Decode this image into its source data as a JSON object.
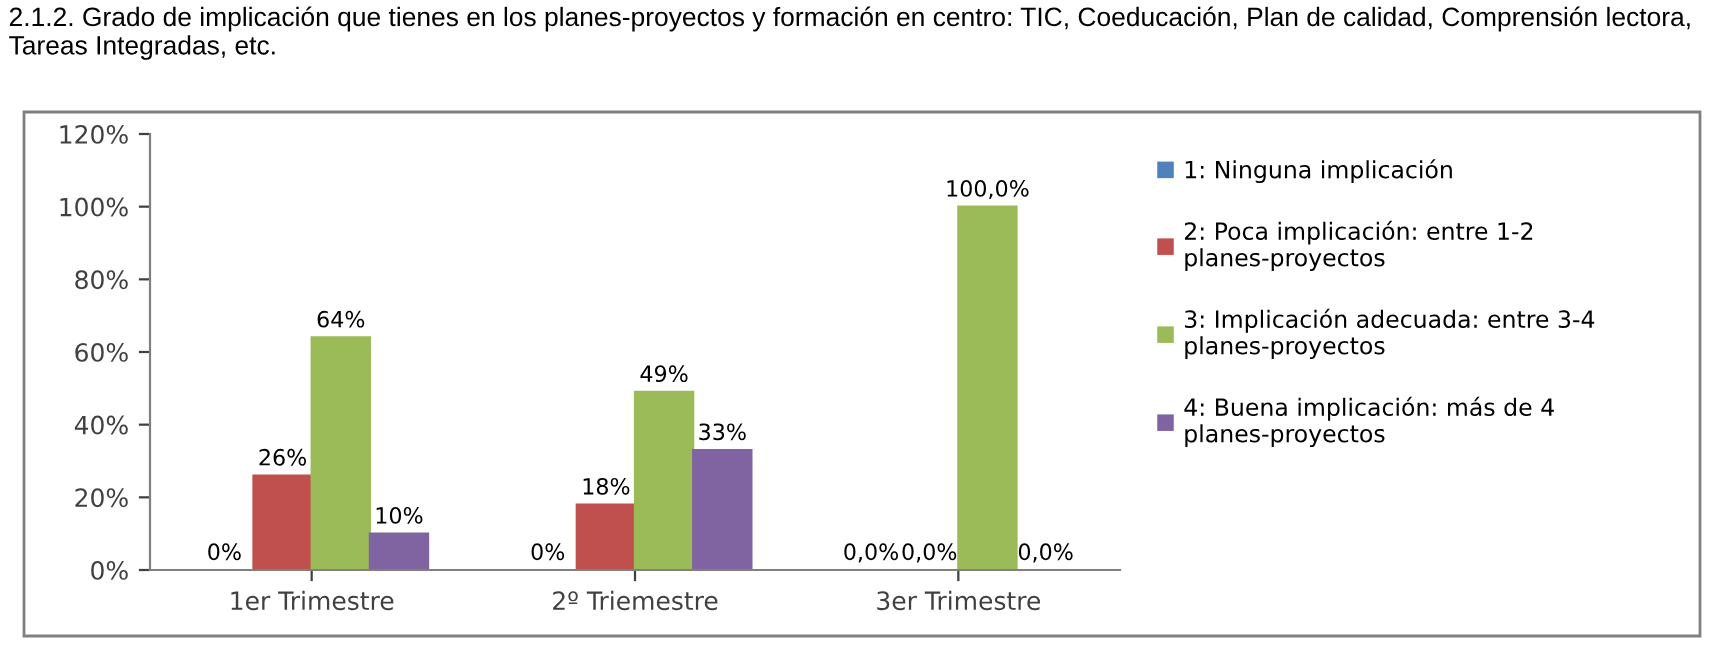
{
  "chart_data": {
    "type": "bar",
    "title": "2.1.2. Grado de implicación que tienes en los planes-proyectos y formación en centro: TIC, Coeducación, Plan de calidad, Comprensión lectora, Tareas Integradas, etc.",
    "categories": [
      "1er Trimestre",
      "2º Triemestre",
      "3er Trimestre"
    ],
    "series": [
      {
        "name": "1: Ninguna implicación",
        "color": "#4f81bd",
        "values": [
          0,
          0,
          0
        ],
        "value_labels": [
          "0%",
          "0%",
          "0,0%"
        ]
      },
      {
        "name": "2: Poca implicación: entre 1-2 planes-proyectos",
        "color": "#c0504d",
        "values": [
          26,
          18,
          0
        ],
        "value_labels": [
          "26%",
          "18%",
          "0,0%"
        ]
      },
      {
        "name": "3: Implicación adecuada: entre 3-4 planes-proyectos",
        "color": "#9bbb59",
        "values": [
          64,
          49,
          100
        ],
        "value_labels": [
          "64%",
          "49%",
          "100,0%"
        ]
      },
      {
        "name": "4: Buena implicación: más de 4 planes-proyectos",
        "color": "#8064a2",
        "values": [
          10,
          33,
          0
        ],
        "value_labels": [
          "10%",
          "33%",
          "0,0%"
        ]
      }
    ],
    "ylim": [
      0,
      120
    ],
    "yticks": [
      {
        "value": 0,
        "label": "0%"
      },
      {
        "value": 20,
        "label": "20%"
      },
      {
        "value": 40,
        "label": "40%"
      },
      {
        "value": 60,
        "label": "60%"
      },
      {
        "value": 80,
        "label": "80%"
      },
      {
        "value": 100,
        "label": "100%"
      },
      {
        "value": 120,
        "label": "120%"
      }
    ],
    "grid": false,
    "legend": "right"
  }
}
